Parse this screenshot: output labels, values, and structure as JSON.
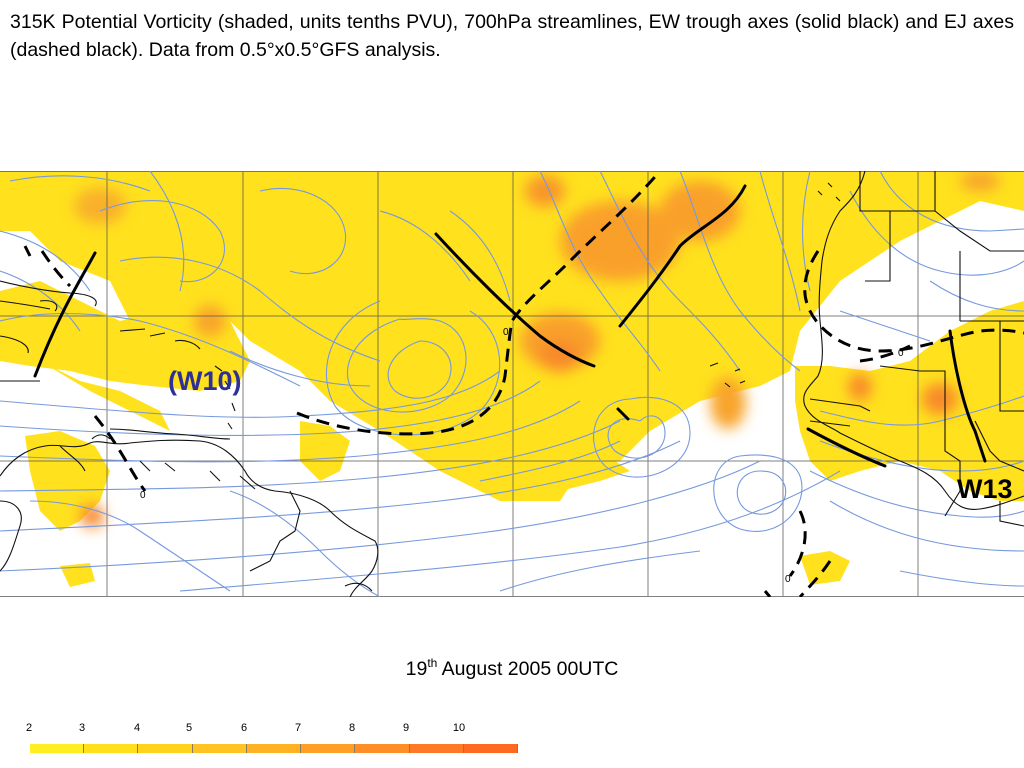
{
  "caption": "315K Potential Vorticity (shaded, units tenths PVU), 700hPa streamlines, EW trough axes (solid black) and EJ axes (dashed black). Data from 0.5°x0.5°GFS analysis.",
  "date": {
    "day": "19",
    "suffix": "th",
    "rest": " August 2005 00UTC"
  },
  "waves": {
    "w10": "(W10)",
    "w13": "W13"
  },
  "contour_label": "0",
  "legend": {
    "ticks": [
      "2",
      "3",
      "4",
      "5",
      "6",
      "7",
      "8",
      "9",
      "10"
    ],
    "colors": [
      "#ffee22",
      "#ffe01a",
      "#ffd21c",
      "#ffc422",
      "#ffb224",
      "#ffa026",
      "#ff8e26",
      "#ff7a26",
      "#ff6a22"
    ]
  },
  "colors": {
    "streamline": "#7799dd",
    "pv_low": "#ffe11e",
    "pv_mid": "#ffbe28",
    "pv_high": "#f98c28",
    "grid": "#555555",
    "coast": "#111111"
  }
}
